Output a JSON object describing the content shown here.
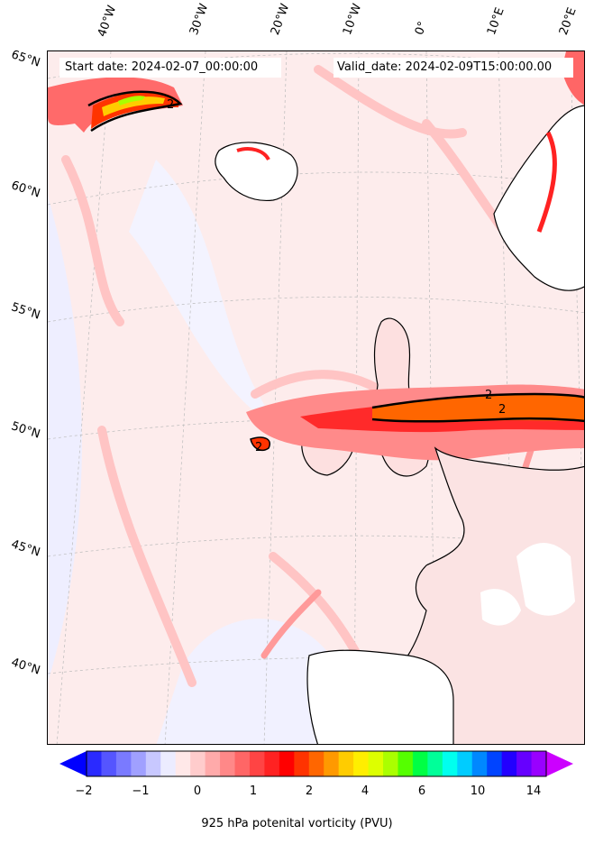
{
  "header": {
    "start_date": "Start date: 2024-02-07_00:00:00",
    "valid_date": "Valid_date: 2024-02-09T15:00:00.00"
  },
  "lon_labels": [
    "40°W",
    "30°W",
    "20°W",
    "10°W",
    "0°",
    "10°E",
    "20°E"
  ],
  "lat_labels": [
    "65°N",
    "60°N",
    "55°N",
    "50°N",
    "45°N",
    "40°N"
  ],
  "contour_labels": [
    "2",
    "2",
    "2",
    "2"
  ],
  "colorbar": {
    "ticks": [
      "−2",
      "−1",
      "0",
      "1",
      "2",
      "4",
      "6",
      "10",
      "14"
    ],
    "label": "925 hPa potenital vorticity (PVU)",
    "colors": [
      "#0000ff",
      "#2a2aff",
      "#5555ff",
      "#7a7aff",
      "#a0a0ff",
      "#c8c8ff",
      "#ececff",
      "#ffe8e8",
      "#ffcccc",
      "#ffaaaa",
      "#ff8888",
      "#ff6666",
      "#ff4444",
      "#ff2222",
      "#ff0000",
      "#ff3300",
      "#ff6600",
      "#ff9900",
      "#ffcc00",
      "#ffee00",
      "#ddff00",
      "#aaff00",
      "#55ff00",
      "#00ff44",
      "#00ff99",
      "#00ffee",
      "#00ccff",
      "#0088ff",
      "#0044ff",
      "#2200ff",
      "#6600ff",
      "#9900ff",
      "#cc00ff"
    ]
  }
}
